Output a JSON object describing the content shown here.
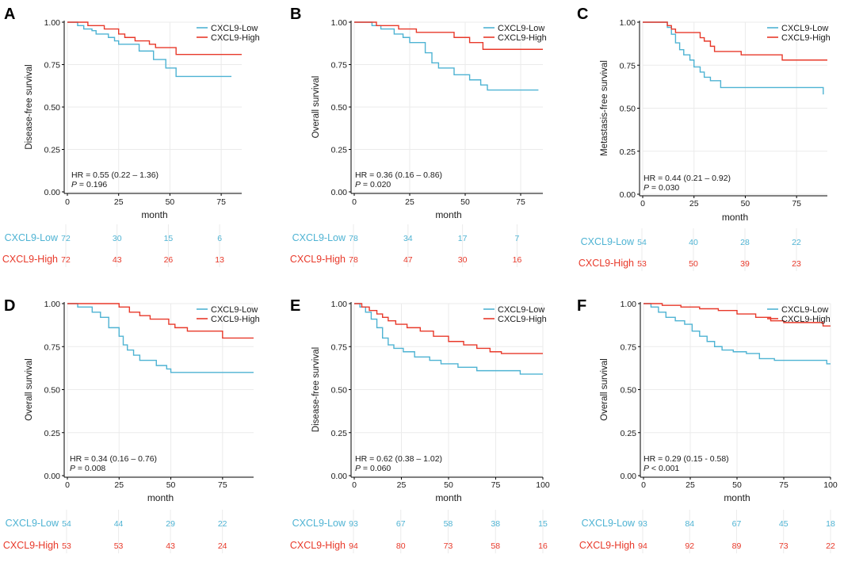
{
  "colors": {
    "low": "#4EB3D3",
    "high": "#E8392A",
    "grid": "#ebebeb",
    "axis": "#000000",
    "text": "#1a1a1a"
  },
  "shared": {
    "xlabel": "month",
    "low_label": "CXCL9-Low",
    "high_label": "CXCL9-High",
    "hr_prefix": "HR = "
  },
  "chart_data": [
    {
      "type": "line",
      "panel": "A",
      "ylabel": "Disease-free survival",
      "xlim": [
        0,
        85
      ],
      "ylim": [
        0,
        1
      ],
      "x_ticks": [
        "0",
        "25",
        "50",
        "75"
      ],
      "y_ticks": [
        "0.00",
        "0.25",
        "0.50",
        "0.75",
        "1.00"
      ],
      "hr_text": "0.55 (0.22 –  1.36)",
      "p_text": " = 0.196",
      "series": [
        {
          "name": "CXCL9-Low",
          "points": [
            [
              0,
              1
            ],
            [
              5,
              0.98
            ],
            [
              8,
              0.96
            ],
            [
              12,
              0.95
            ],
            [
              14,
              0.93
            ],
            [
              20,
              0.91
            ],
            [
              23,
              0.89
            ],
            [
              25,
              0.87
            ],
            [
              35,
              0.83
            ],
            [
              42,
              0.78
            ],
            [
              48,
              0.73
            ],
            [
              53,
              0.68
            ],
            [
              80,
              0.68
            ]
          ]
        },
        {
          "name": "CXCL9-High",
          "points": [
            [
              0,
              1
            ],
            [
              10,
              0.98
            ],
            [
              18,
              0.96
            ],
            [
              25,
              0.93
            ],
            [
              28,
              0.91
            ],
            [
              33,
              0.89
            ],
            [
              40,
              0.87
            ],
            [
              43,
              0.85
            ],
            [
              53,
              0.81
            ],
            [
              85,
              0.81
            ]
          ]
        }
      ],
      "risk_table": {
        "ticks": [
          0,
          25,
          50,
          75
        ],
        "low": [
          "72",
          "30",
          "15",
          "6"
        ],
        "high": [
          "72",
          "43",
          "26",
          "13"
        ]
      }
    },
    {
      "type": "line",
      "panel": "B",
      "ylabel": "Overall survival",
      "xlim": [
        0,
        85
      ],
      "ylim": [
        0,
        1
      ],
      "x_ticks": [
        "0",
        "25",
        "50",
        "75"
      ],
      "y_ticks": [
        "0.00",
        "0.25",
        "0.50",
        "0.75",
        "1.00"
      ],
      "hr_text": "0.36 (0.16 –  0.86)",
      "p_text": " = 0.020",
      "series": [
        {
          "name": "CXCL9-Low",
          "points": [
            [
              0,
              1
            ],
            [
              8,
              0.98
            ],
            [
              12,
              0.96
            ],
            [
              18,
              0.93
            ],
            [
              22,
              0.91
            ],
            [
              25,
              0.88
            ],
            [
              32,
              0.82
            ],
            [
              35,
              0.76
            ],
            [
              38,
              0.73
            ],
            [
              45,
              0.69
            ],
            [
              52,
              0.66
            ],
            [
              57,
              0.63
            ],
            [
              60,
              0.6
            ],
            [
              83,
              0.6
            ]
          ]
        },
        {
          "name": "CXCL9-High",
          "points": [
            [
              0,
              1
            ],
            [
              10,
              0.98
            ],
            [
              20,
              0.96
            ],
            [
              28,
              0.94
            ],
            [
              45,
              0.91
            ],
            [
              52,
              0.88
            ],
            [
              58,
              0.84
            ],
            [
              85,
              0.84
            ]
          ]
        }
      ],
      "risk_table": {
        "ticks": [
          0,
          25,
          50,
          75
        ],
        "low": [
          "78",
          "34",
          "17",
          "7"
        ],
        "high": [
          "78",
          "47",
          "30",
          "16"
        ]
      }
    },
    {
      "type": "line",
      "panel": "C",
      "ylabel": "Metastasis-free survival",
      "xlim": [
        0,
        90
      ],
      "ylim": [
        0,
        1
      ],
      "x_ticks": [
        "0",
        "25",
        "50",
        "75"
      ],
      "y_ticks": [
        "0.00",
        "0.25",
        "0.50",
        "0.75",
        "1.00"
      ],
      "hr_text": "0.44 (0.21 –  0.92)",
      "p_text": " = 0.030",
      "series": [
        {
          "name": "CXCL9-Low",
          "points": [
            [
              0,
              1
            ],
            [
              12,
              0.97
            ],
            [
              14,
              0.93
            ],
            [
              16,
              0.88
            ],
            [
              18,
              0.84
            ],
            [
              20,
              0.81
            ],
            [
              23,
              0.78
            ],
            [
              25,
              0.74
            ],
            [
              28,
              0.71
            ],
            [
              30,
              0.68
            ],
            [
              33,
              0.66
            ],
            [
              38,
              0.62
            ],
            [
              87,
              0.62
            ],
            [
              88,
              0.58
            ]
          ]
        },
        {
          "name": "CXCL9-High",
          "points": [
            [
              0,
              1
            ],
            [
              12,
              0.98
            ],
            [
              14,
              0.96
            ],
            [
              16,
              0.94
            ],
            [
              28,
              0.91
            ],
            [
              30,
              0.89
            ],
            [
              33,
              0.86
            ],
            [
              35,
              0.83
            ],
            [
              48,
              0.81
            ],
            [
              68,
              0.78
            ],
            [
              90,
              0.78
            ]
          ]
        }
      ],
      "risk_table": {
        "ticks": [
          0,
          25,
          50,
          75
        ],
        "low": [
          "54",
          "40",
          "28",
          "22"
        ],
        "high": [
          "53",
          "50",
          "39",
          "23"
        ]
      }
    },
    {
      "type": "line",
      "panel": "D",
      "ylabel": "Overall survival",
      "xlim": [
        0,
        90
      ],
      "ylim": [
        0,
        1
      ],
      "x_ticks": [
        "0",
        "25",
        "50",
        "75"
      ],
      "y_ticks": [
        "0.00",
        "0.25",
        "0.50",
        "0.75",
        "1.00"
      ],
      "hr_text": "0.34 (0.16 –  0.76)",
      "p_text": " = 0.008",
      "series": [
        {
          "name": "CXCL9-Low",
          "points": [
            [
              0,
              1
            ],
            [
              5,
              0.98
            ],
            [
              12,
              0.95
            ],
            [
              16,
              0.92
            ],
            [
              20,
              0.86
            ],
            [
              25,
              0.81
            ],
            [
              27,
              0.76
            ],
            [
              29,
              0.73
            ],
            [
              32,
              0.7
            ],
            [
              35,
              0.67
            ],
            [
              43,
              0.64
            ],
            [
              48,
              0.62
            ],
            [
              50,
              0.6
            ],
            [
              90,
              0.6
            ]
          ]
        },
        {
          "name": "CXCL9-High",
          "points": [
            [
              0,
              1
            ],
            [
              25,
              0.98
            ],
            [
              30,
              0.95
            ],
            [
              35,
              0.93
            ],
            [
              40,
              0.91
            ],
            [
              49,
              0.88
            ],
            [
              52,
              0.86
            ],
            [
              58,
              0.84
            ],
            [
              75,
              0.8
            ],
            [
              90,
              0.8
            ]
          ]
        }
      ],
      "risk_table": {
        "ticks": [
          0,
          25,
          50,
          75
        ],
        "low": [
          "54",
          "44",
          "29",
          "22"
        ],
        "high": [
          "53",
          "53",
          "43",
          "24"
        ]
      }
    },
    {
      "type": "line",
      "panel": "E",
      "ylabel": "Disease-free survival",
      "xlim": [
        0,
        100
      ],
      "ylim": [
        0,
        1
      ],
      "x_ticks": [
        "0",
        "25",
        "50",
        "75",
        "100"
      ],
      "y_ticks": [
        "0.00",
        "0.25",
        "0.50",
        "0.75",
        "1.00"
      ],
      "hr_text": "0.62 (0.38 –  1.02)",
      "p_text": " = 0.060",
      "series": [
        {
          "name": "CXCL9-Low",
          "points": [
            [
              0,
              1
            ],
            [
              3,
              0.98
            ],
            [
              6,
              0.95
            ],
            [
              9,
              0.91
            ],
            [
              12,
              0.86
            ],
            [
              15,
              0.8
            ],
            [
              18,
              0.76
            ],
            [
              21,
              0.74
            ],
            [
              26,
              0.72
            ],
            [
              32,
              0.69
            ],
            [
              40,
              0.67
            ],
            [
              46,
              0.65
            ],
            [
              55,
              0.63
            ],
            [
              65,
              0.61
            ],
            [
              82,
              0.61
            ],
            [
              88,
              0.59
            ],
            [
              100,
              0.59
            ]
          ]
        },
        {
          "name": "CXCL9-High",
          "points": [
            [
              0,
              1
            ],
            [
              4,
              0.98
            ],
            [
              8,
              0.96
            ],
            [
              12,
              0.94
            ],
            [
              15,
              0.92
            ],
            [
              18,
              0.9
            ],
            [
              22,
              0.88
            ],
            [
              28,
              0.86
            ],
            [
              35,
              0.84
            ],
            [
              42,
              0.81
            ],
            [
              50,
              0.78
            ],
            [
              58,
              0.76
            ],
            [
              65,
              0.74
            ],
            [
              72,
              0.72
            ],
            [
              78,
              0.71
            ],
            [
              100,
              0.71
            ]
          ]
        }
      ],
      "risk_table": {
        "ticks": [
          0,
          25,
          50,
          75,
          100
        ],
        "low": [
          "93",
          "67",
          "58",
          "38",
          "15"
        ],
        "high": [
          "94",
          "80",
          "73",
          "58",
          "16"
        ]
      }
    },
    {
      "type": "line",
      "panel": "F",
      "ylabel": "Overall survival",
      "xlim": [
        0,
        100
      ],
      "ylim": [
        0,
        1
      ],
      "x_ticks": [
        "0",
        "25",
        "50",
        "75",
        "100"
      ],
      "y_ticks": [
        "0.00",
        "0.25",
        "0.50",
        "0.75",
        "1.00"
      ],
      "hr_text": "0.29 (0.15 - 0.58)",
      "p_text": " < 0.001",
      "series": [
        {
          "name": "CXCL9-Low",
          "points": [
            [
              0,
              1
            ],
            [
              4,
              0.98
            ],
            [
              8,
              0.95
            ],
            [
              12,
              0.92
            ],
            [
              17,
              0.9
            ],
            [
              22,
              0.88
            ],
            [
              26,
              0.84
            ],
            [
              30,
              0.81
            ],
            [
              34,
              0.78
            ],
            [
              38,
              0.75
            ],
            [
              42,
              0.73
            ],
            [
              48,
              0.72
            ],
            [
              55,
              0.71
            ],
            [
              62,
              0.68
            ],
            [
              70,
              0.67
            ],
            [
              97,
              0.67
            ],
            [
              98,
              0.65
            ],
            [
              100,
              0.65
            ]
          ]
        },
        {
          "name": "CXCL9-High",
          "points": [
            [
              0,
              1
            ],
            [
              10,
              0.99
            ],
            [
              20,
              0.98
            ],
            [
              30,
              0.97
            ],
            [
              40,
              0.96
            ],
            [
              50,
              0.94
            ],
            [
              60,
              0.92
            ],
            [
              68,
              0.9
            ],
            [
              75,
              0.89
            ],
            [
              92,
              0.89
            ],
            [
              96,
              0.87
            ],
            [
              100,
              0.87
            ]
          ]
        }
      ],
      "risk_table": {
        "ticks": [
          0,
          25,
          50,
          75,
          100
        ],
        "low": [
          "93",
          "84",
          "67",
          "45",
          "18"
        ],
        "high": [
          "94",
          "92",
          "89",
          "73",
          "22"
        ]
      }
    }
  ]
}
